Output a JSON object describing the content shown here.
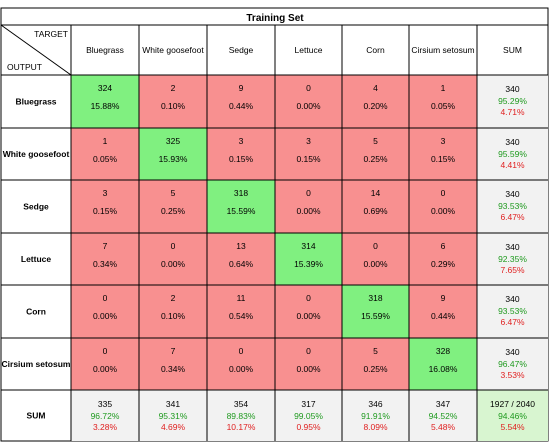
{
  "chart_data": {
    "type": "table",
    "title": "Training Set",
    "corner": {
      "target_label": "TARGET",
      "output_label": "OUTPUT"
    },
    "columns": [
      "Bluegrass",
      "White goosefoot",
      "Sedge",
      "Lettuce",
      "Corn",
      "Cirsium setosum"
    ],
    "rows": [
      "Bluegrass",
      "White goosefoot",
      "Sedge",
      "Lettuce",
      "Corn",
      "Cirsium setosum"
    ],
    "sum_label": "SUM",
    "counts": [
      [
        324,
        2,
        9,
        0,
        4,
        1
      ],
      [
        1,
        325,
        3,
        3,
        5,
        3
      ],
      [
        3,
        5,
        318,
        0,
        14,
        0
      ],
      [
        7,
        0,
        13,
        314,
        0,
        6
      ],
      [
        0,
        2,
        11,
        0,
        318,
        9
      ],
      [
        0,
        7,
        0,
        0,
        5,
        328
      ]
    ],
    "percents": [
      [
        "15.88%",
        "0.10%",
        "0.44%",
        "0.00%",
        "0.20%",
        "0.05%"
      ],
      [
        "0.05%",
        "15.93%",
        "0.15%",
        "0.15%",
        "0.25%",
        "0.15%"
      ],
      [
        "0.15%",
        "0.25%",
        "15.59%",
        "0.00%",
        "0.69%",
        "0.00%"
      ],
      [
        "0.34%",
        "0.00%",
        "0.64%",
        "15.39%",
        "0.00%",
        "0.29%"
      ],
      [
        "0.00%",
        "0.10%",
        "0.54%",
        "0.00%",
        "15.59%",
        "0.44%"
      ],
      [
        "0.00%",
        "0.34%",
        "0.00%",
        "0.00%",
        "0.25%",
        "16.08%"
      ]
    ],
    "row_sums": [
      {
        "total": "340",
        "correct": "95.29%",
        "error": "4.71%"
      },
      {
        "total": "340",
        "correct": "95.59%",
        "error": "4.41%"
      },
      {
        "total": "340",
        "correct": "93.53%",
        "error": "6.47%"
      },
      {
        "total": "340",
        "correct": "92.35%",
        "error": "7.65%"
      },
      {
        "total": "340",
        "correct": "93.53%",
        "error": "6.47%"
      },
      {
        "total": "340",
        "correct": "96.47%",
        "error": "3.53%"
      }
    ],
    "col_sums": [
      {
        "total": "335",
        "correct": "96.72%",
        "error": "3.28%"
      },
      {
        "total": "341",
        "correct": "95.31%",
        "error": "4.69%"
      },
      {
        "total": "354",
        "correct": "89.83%",
        "error": "10.17%"
      },
      {
        "total": "317",
        "correct": "99.05%",
        "error": "0.95%"
      },
      {
        "total": "346",
        "correct": "91.91%",
        "error": "8.09%"
      },
      {
        "total": "347",
        "correct": "94.52%",
        "error": "5.48%"
      }
    ],
    "overall": {
      "total": "1927 / 2040",
      "correct": "94.46%",
      "error": "5.54%"
    },
    "colors": {
      "diagonal": "#80f080",
      "off_diagonal": "#f89090",
      "sum_cell": "#f2f2f2",
      "overall_cell": "#d8f5d0",
      "correct_text": "#1f9a1f",
      "error_text": "#e02020",
      "grid": "#000000",
      "text": "#000000"
    }
  }
}
